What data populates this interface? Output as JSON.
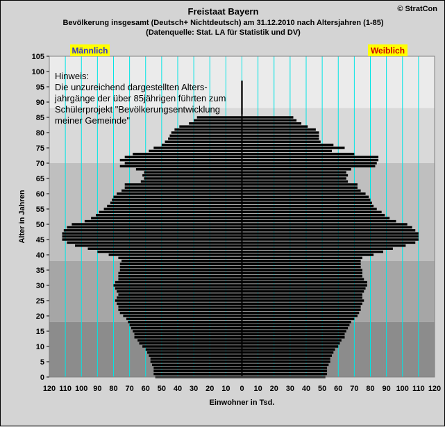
{
  "header": {
    "title": "Freistaat Bayern",
    "subtitle": "Bevölkerung  insgesamt (Deutsch+ Nichtdeutsch) am 31.12.2010 nach Altersjahren (1-85)",
    "source": "(Datenquelle: Stat. LA für Statistik und DV)",
    "copyright": "© StratCon"
  },
  "chart_data": {
    "type": "bar",
    "orientation": "horizontal",
    "subtype": "population-pyramid",
    "title": "Freistaat Bayern",
    "xlabel": "Einwohner in Tsd.",
    "ylabel": "Alter in Jahren",
    "xlim": [
      -120,
      120
    ],
    "ylim": [
      0,
      105
    ],
    "x_ticks": [
      "120",
      "110",
      "100",
      "90",
      "80",
      "70",
      "60",
      "50",
      "40",
      "30",
      "20",
      "10",
      "0",
      "10",
      "20",
      "30",
      "40",
      "50",
      "60",
      "70",
      "80",
      "90",
      "100",
      "110",
      "120"
    ],
    "y_ticks": [
      0,
      5,
      10,
      15,
      20,
      25,
      30,
      35,
      40,
      45,
      50,
      55,
      60,
      65,
      70,
      75,
      80,
      85,
      90,
      95,
      100,
      105
    ],
    "legend": {
      "male": "Männlich",
      "female": "Weiblich"
    },
    "note": "Hinweis:\nDie unzureichend dargestellten Alters-\njahrgänge der über 85jährigen führten zum\nSchülerprojekt \"Bevölkerungsentwicklung\nmeiner Gemeinde\"",
    "ages": [
      0,
      1,
      2,
      3,
      4,
      5,
      6,
      7,
      8,
      9,
      10,
      11,
      12,
      13,
      14,
      15,
      16,
      17,
      18,
      19,
      20,
      21,
      22,
      23,
      24,
      25,
      26,
      27,
      28,
      29,
      30,
      31,
      32,
      33,
      34,
      35,
      36,
      37,
      38,
      39,
      40,
      41,
      42,
      43,
      44,
      45,
      46,
      47,
      48,
      49,
      50,
      51,
      52,
      53,
      54,
      55,
      56,
      57,
      58,
      59,
      60,
      61,
      62,
      63,
      64,
      65,
      66,
      67,
      68,
      69,
      70,
      71,
      72,
      73,
      74,
      75,
      76,
      77,
      78,
      79,
      80,
      81,
      82,
      83,
      84,
      85
    ],
    "series": [
      {
        "name": "Männlich",
        "values": [
          54,
          55,
          55,
          55,
          56,
          57,
          57,
          58,
          59,
          60,
          62,
          64,
          65,
          67,
          67,
          68,
          69,
          70,
          71,
          72,
          74,
          76,
          77,
          77,
          78,
          79,
          78,
          77,
          78,
          79,
          80,
          79,
          77,
          77,
          77,
          76,
          76,
          76,
          75,
          77,
          83,
          90,
          96,
          104,
          109,
          112,
          112,
          112,
          111,
          109,
          106,
          98,
          94,
          91,
          89,
          86,
          84,
          82,
          81,
          80,
          78,
          75,
          73,
          73,
          63,
          61,
          62,
          61,
          66,
          76,
          73,
          76,
          73,
          68,
          58,
          55,
          50,
          48,
          46,
          45,
          44,
          42,
          39,
          33,
          30,
          28
        ]
      },
      {
        "name": "Weiblich",
        "values": [
          52,
          53,
          53,
          53,
          54,
          55,
          55,
          56,
          57,
          58,
          60,
          61,
          62,
          64,
          64,
          65,
          66,
          67,
          68,
          70,
          72,
          73,
          74,
          74,
          75,
          76,
          75,
          75,
          76,
          77,
          78,
          78,
          76,
          75,
          75,
          75,
          74,
          74,
          74,
          75,
          82,
          88,
          94,
          102,
          108,
          110,
          110,
          110,
          108,
          106,
          103,
          96,
          92,
          89,
          87,
          84,
          82,
          81,
          80,
          79,
          77,
          74,
          72,
          72,
          66,
          65,
          66,
          65,
          68,
          83,
          84,
          85,
          85,
          70,
          56,
          64,
          57,
          49,
          48,
          48,
          48,
          46,
          41,
          37,
          34,
          32
        ]
      }
    ],
    "age_96_bar": 0.5,
    "colors": {
      "bar": "#000000",
      "gridline": "#00e5e5",
      "legend_bg": "#ffff00",
      "male_text": "#3333cc",
      "female_text": "#cc0000"
    }
  }
}
